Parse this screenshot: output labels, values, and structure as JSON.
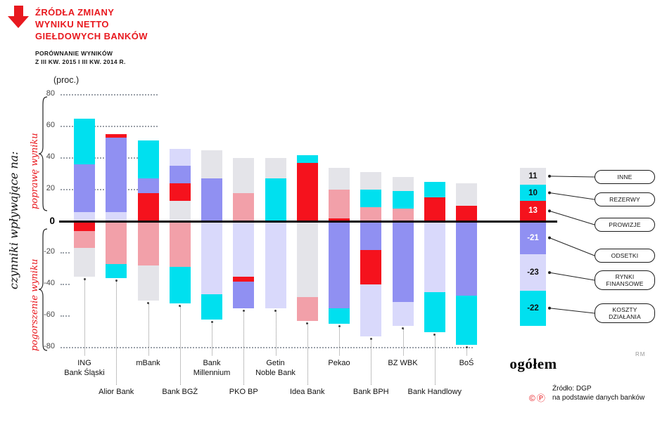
{
  "header": {
    "title_lines": [
      "ŹRÓDŁA ZMIANY",
      "WYNIKU NETTO",
      "GIEŁDOWYCH BANKÓW"
    ],
    "subtitle_lines": [
      "PORÓWNANIE WYNIKÓW",
      "Z III KW. 2015 I III KW. 2014 R."
    ]
  },
  "left_labels": {
    "axis_caption": "czynniki wpływające na:",
    "improve": "poprawę wyniku",
    "worsen": "pogorszenie wyniku"
  },
  "footer": {
    "rm": "RM",
    "copyright_marks": "©Ⓟ",
    "source_line1": "Źródło: DGP",
    "source_line2": "na podstawie danych banków"
  },
  "chart_data": {
    "type": "bar",
    "variant": "diverging stacked bar — contributions (pp) to change of net result per bank",
    "unit": "(proc.)",
    "ylim": [
      -80,
      80
    ],
    "yticks": [
      80,
      60,
      40,
      20,
      0,
      -20,
      -40,
      -60,
      -80
    ],
    "palette": {
      "cyan": "#00E0EF",
      "red": "#F5121D",
      "purple": "#9090F2",
      "lavender": "#D9D9FB",
      "gray": "#E4E4E9",
      "pink": "#F2A0A9"
    },
    "callout_labels": [
      "INNE",
      "REZERWY",
      "PROWIZJE",
      "ODSETKI",
      "RYNKI FINANSOWE",
      "KOSZTY DZIAŁANIA"
    ],
    "bars": [
      {
        "name": "ING Bank Śląski",
        "row": 1,
        "label_lines": [
          "ING",
          "Bank Śląski"
        ],
        "segments": [
          {
            "color": "cyan",
            "value": 29
          },
          {
            "color": "purple",
            "value": 30
          },
          {
            "color": "lavender",
            "value": 6
          },
          {
            "color": "red",
            "value": -6
          },
          {
            "color": "pink",
            "value": -11
          },
          {
            "color": "gray",
            "value": -18
          }
        ]
      },
      {
        "name": "Alior Bank",
        "row": 2,
        "label_lines": [
          "Alior Bank"
        ],
        "segments": [
          {
            "color": "red",
            "value": 2
          },
          {
            "color": "purple",
            "value": 47
          },
          {
            "color": "lavender",
            "value": 6
          },
          {
            "color": "pink",
            "value": -27
          },
          {
            "color": "cyan",
            "value": -9
          }
        ]
      },
      {
        "name": "mBank",
        "row": 1,
        "label_lines": [
          "mBank"
        ],
        "segments": [
          {
            "color": "cyan",
            "value": 24
          },
          {
            "color": "purple",
            "value": 9
          },
          {
            "color": "red",
            "value": 18
          },
          {
            "color": "pink",
            "value": -28
          },
          {
            "color": "gray",
            "value": -22
          }
        ]
      },
      {
        "name": "Bank BGŻ",
        "row": 2,
        "label_lines": [
          "Bank BGŻ"
        ],
        "segments": [
          {
            "color": "lavender",
            "value": 11
          },
          {
            "color": "purple",
            "value": 11
          },
          {
            "color": "red",
            "value": 11
          },
          {
            "color": "gray",
            "value": 13
          },
          {
            "color": "pink",
            "value": -29
          },
          {
            "color": "cyan",
            "value": -23
          }
        ]
      },
      {
        "name": "Bank Millennium",
        "row": 1,
        "label_lines": [
          "Bank",
          "Millennium"
        ],
        "segments": [
          {
            "color": "gray",
            "value": 18
          },
          {
            "color": "purple",
            "value": 27
          },
          {
            "color": "lavender",
            "value": -46
          },
          {
            "color": "cyan",
            "value": -16
          }
        ]
      },
      {
        "name": "PKO BP",
        "row": 2,
        "label_lines": [
          "PKO BP"
        ],
        "segments": [
          {
            "color": "gray",
            "value": 22
          },
          {
            "color": "pink",
            "value": 18
          },
          {
            "color": "lavender",
            "value": -35
          },
          {
            "color": "red",
            "value": -3
          },
          {
            "color": "purple",
            "value": -17
          }
        ]
      },
      {
        "name": "Getin Noble Bank",
        "row": 1,
        "label_lines": [
          "Getin",
          "Noble Bank"
        ],
        "segments": [
          {
            "color": "gray",
            "value": 13
          },
          {
            "color": "cyan",
            "value": 27
          },
          {
            "color": "lavender",
            "value": -55
          }
        ]
      },
      {
        "name": "Idea Bank",
        "row": 2,
        "label_lines": [
          "Idea Bank"
        ],
        "segments": [
          {
            "color": "cyan",
            "value": 5
          },
          {
            "color": "red",
            "value": 37
          },
          {
            "color": "gray",
            "value": -48
          },
          {
            "color": "pink",
            "value": -15
          }
        ]
      },
      {
        "name": "Pekao",
        "row": 1,
        "label_lines": [
          "Pekao"
        ],
        "segments": [
          {
            "color": "gray",
            "value": 14
          },
          {
            "color": "pink",
            "value": 18
          },
          {
            "color": "red",
            "value": 2
          },
          {
            "color": "purple",
            "value": -55
          },
          {
            "color": "cyan",
            "value": -10
          }
        ]
      },
      {
        "name": "Bank BPH",
        "row": 2,
        "label_lines": [
          "Bank BPH"
        ],
        "segments": [
          {
            "color": "gray",
            "value": 11
          },
          {
            "color": "cyan",
            "value": 11
          },
          {
            "color": "pink",
            "value": 9
          },
          {
            "color": "purple",
            "value": -18
          },
          {
            "color": "red",
            "value": -22
          },
          {
            "color": "lavender",
            "value": -33
          }
        ]
      },
      {
        "name": "BZ WBK",
        "row": 1,
        "label_lines": [
          "BZ WBK"
        ],
        "segments": [
          {
            "color": "gray",
            "value": 9
          },
          {
            "color": "cyan",
            "value": 11
          },
          {
            "color": "pink",
            "value": 8
          },
          {
            "color": "purple",
            "value": -51
          },
          {
            "color": "lavender",
            "value": -15
          }
        ]
      },
      {
        "name": "Bank Handlowy",
        "row": 2,
        "label_lines": [
          "Bank Handlowy"
        ],
        "segments": [
          {
            "color": "cyan",
            "value": 10
          },
          {
            "color": "red",
            "value": 15
          },
          {
            "color": "lavender",
            "value": -45
          },
          {
            "color": "cyan",
            "value": -25
          }
        ]
      },
      {
        "name": "BoŚ",
        "row": 1,
        "label_lines": [
          "BoŚ"
        ],
        "segments": [
          {
            "color": "gray",
            "value": 14
          },
          {
            "color": "red",
            "value": 10
          },
          {
            "color": "purple",
            "value": -47
          },
          {
            "color": "cyan",
            "value": -31
          }
        ]
      }
    ],
    "total": {
      "name": "ogółem",
      "segments": [
        {
          "category": "INNE",
          "value": 11,
          "color": "gray"
        },
        {
          "category": "REZERWY",
          "value": 10,
          "color": "cyan"
        },
        {
          "category": "PROWIZJE",
          "value": 13,
          "color": "red"
        },
        {
          "category": "ODSETKI",
          "value": -21,
          "color": "purple"
        },
        {
          "category": "RYNKI FINANSOWE",
          "value": -23,
          "color": "lavender"
        },
        {
          "category": "KOSZTY DZIAŁANIA",
          "value": -22,
          "color": "cyan"
        }
      ]
    }
  }
}
